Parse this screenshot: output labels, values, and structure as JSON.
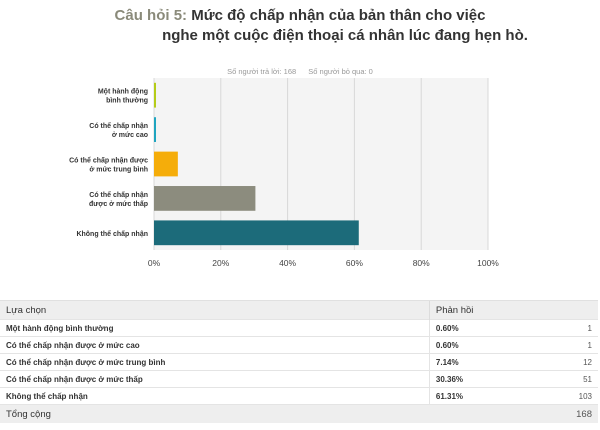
{
  "header": {
    "question_number": "Câu hỏi 5:",
    "title_line1": "Mức độ chấp nhận của bản thân cho việc",
    "title_line2": "nghe một cuộc điện thoại cá nhân lúc đang hẹn hò."
  },
  "stats": {
    "answered": "Số người trả lời: 168",
    "skipped": "Số người bỏ qua: 0"
  },
  "chart_data": {
    "type": "bar",
    "orientation": "horizontal",
    "categories": [
      [
        "Một hành động",
        "bình thường"
      ],
      [
        "Có thể chấp nhận",
        "ở mức cao"
      ],
      [
        "Có thể chấp nhận được",
        "ở mức trung bình"
      ],
      [
        "Có thể chấp nhận",
        "được ở mức thấp"
      ],
      [
        "Không thể chấp nhận"
      ]
    ],
    "values": [
      0.6,
      0.6,
      7.14,
      30.36,
      61.31
    ],
    "colors": [
      "#b5cc18",
      "#1fa5c0",
      "#f5ad0a",
      "#8c8c7e",
      "#1c6b7a"
    ],
    "xticks": [
      "0%",
      "20%",
      "40%",
      "60%",
      "80%",
      "100%"
    ],
    "xlim": [
      0,
      100
    ],
    "grid": true,
    "legend": "none"
  },
  "table": {
    "headers": [
      "Lựa chọn",
      "Phản hồi"
    ],
    "rows": [
      {
        "label": "Một hành động bình thường",
        "percent": "0.60%",
        "count": "1"
      },
      {
        "label": "Có thể chấp nhận được ở mức cao",
        "percent": "0.60%",
        "count": "1"
      },
      {
        "label": "Có thể chấp nhận được ở mức trung bình",
        "percent": "7.14%",
        "count": "12"
      },
      {
        "label": "Có thể chấp nhận được ở mức thấp",
        "percent": "30.36%",
        "count": "51"
      },
      {
        "label": "Không thể chấp nhận",
        "percent": "61.31%",
        "count": "103"
      }
    ],
    "total_label": "Tổng cộng",
    "total_count": "168"
  }
}
